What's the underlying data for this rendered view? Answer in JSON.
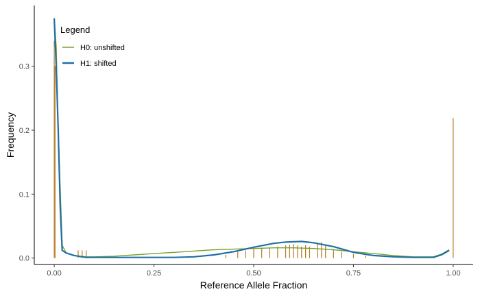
{
  "chart_data": {
    "type": "line",
    "xlabel": "Reference Allele Fraction",
    "ylabel": "Frequency",
    "xlim": [
      -0.05,
      1.05
    ],
    "ylim": [
      -0.01,
      0.395
    ],
    "x_ticks": [
      0.0,
      0.25,
      0.5,
      0.75,
      1.0
    ],
    "x_tick_labels": [
      "0.00",
      "0.25",
      "0.50",
      "0.75",
      "1.00"
    ],
    "y_ticks": [
      0.0,
      0.1,
      0.2,
      0.3
    ],
    "y_tick_labels": [
      "0.0",
      "0.1",
      "0.2",
      "0.3"
    ],
    "grid": false,
    "legend": {
      "title": "Legend",
      "placement": "top-left",
      "entries": [
        {
          "label": "H0: unshifted",
          "color": "#77a22f"
        },
        {
          "label": "H1: shifted",
          "color": "#1f6fa5"
        }
      ]
    },
    "series": [
      {
        "name": "H0: unshifted",
        "color": "#77a22f",
        "x": [
          0.0,
          0.005,
          0.01,
          0.02,
          0.03,
          0.05,
          0.08,
          0.1,
          0.15,
          0.2,
          0.25,
          0.3,
          0.35,
          0.4,
          0.45,
          0.5,
          0.55,
          0.6,
          0.65,
          0.7,
          0.75,
          0.8,
          0.85,
          0.9,
          0.95,
          0.97,
          0.99
        ],
        "y": [
          0.375,
          0.33,
          0.2,
          0.02,
          0.008,
          0.004,
          0.002,
          0.002,
          0.003,
          0.005,
          0.007,
          0.009,
          0.011,
          0.013,
          0.014,
          0.015,
          0.016,
          0.016,
          0.015,
          0.013,
          0.01,
          0.007,
          0.004,
          0.002,
          0.002,
          0.006,
          0.013
        ]
      },
      {
        "name": "H1: shifted",
        "color": "#1f6fa5",
        "x": [
          0.0,
          0.005,
          0.01,
          0.015,
          0.02,
          0.03,
          0.05,
          0.08,
          0.1,
          0.15,
          0.2,
          0.25,
          0.3,
          0.35,
          0.4,
          0.45,
          0.5,
          0.55,
          0.58,
          0.62,
          0.65,
          0.7,
          0.75,
          0.8,
          0.85,
          0.9,
          0.95,
          0.97,
          0.99
        ],
        "y": [
          0.375,
          0.3,
          0.2,
          0.08,
          0.012,
          0.008,
          0.004,
          0.001,
          0.001,
          0.001,
          0.001,
          0.001,
          0.001,
          0.002,
          0.005,
          0.01,
          0.017,
          0.023,
          0.025,
          0.026,
          0.024,
          0.018,
          0.009,
          0.004,
          0.002,
          0.001,
          0.001,
          0.005,
          0.012
        ]
      }
    ],
    "histogram": {
      "color": "#b5771f",
      "x": [
        0.0,
        0.002,
        0.06,
        0.07,
        0.08,
        0.43,
        0.46,
        0.48,
        0.5,
        0.52,
        0.54,
        0.56,
        0.58,
        0.59,
        0.6,
        0.61,
        0.62,
        0.63,
        0.64,
        0.66,
        0.67,
        0.68,
        0.7,
        0.72,
        0.75,
        0.78,
        1.0
      ],
      "y": [
        0.34,
        0.3,
        0.012,
        0.012,
        0.012,
        0.005,
        0.01,
        0.012,
        0.014,
        0.015,
        0.016,
        0.018,
        0.02,
        0.021,
        0.022,
        0.02,
        0.018,
        0.02,
        0.018,
        0.022,
        0.025,
        0.02,
        0.014,
        0.01,
        0.006,
        0.004,
        0.219
      ]
    }
  }
}
